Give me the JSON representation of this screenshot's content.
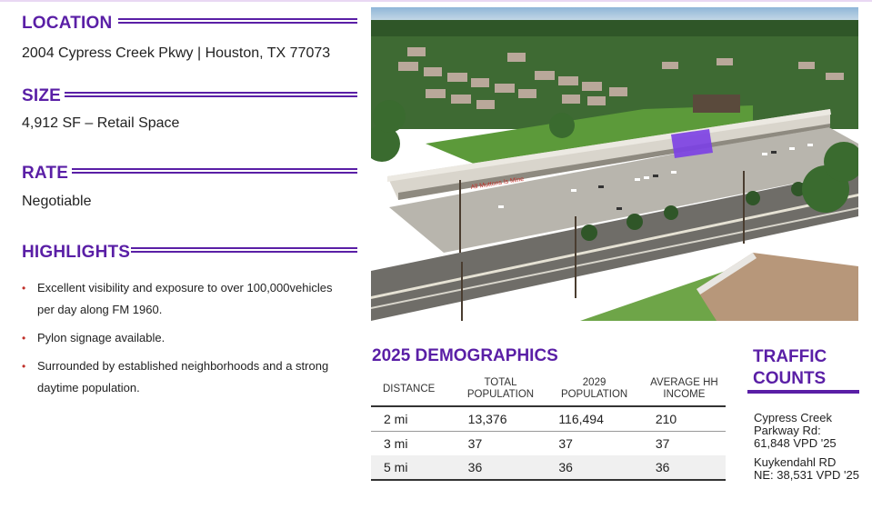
{
  "location": {
    "heading": "LOCATION",
    "address": "2004 Cypress Creek Pkwy  | Houston, TX 77073"
  },
  "size": {
    "heading": "SIZE",
    "value": "4,912 SF – Retail Space"
  },
  "rate": {
    "heading": "RATE",
    "value": "Negotiable"
  },
  "highlights": {
    "heading": "HIGHLIGHTS",
    "items": [
      "Excellent visibility and exposure to over 100,000vehicles  per day along FM 1960.",
      "Pylon signage available.",
      "Surrounded by established neighborhoods and a strong daytime population."
    ]
  },
  "photo": {
    "sign_text": "All Muttons Is Mine"
  },
  "demographics": {
    "title": "2025 DEMOGRAPHICS",
    "columns": [
      "DISTANCE",
      "TOTAL POPULATION",
      "2029 POPULATION",
      "AVERAGE HH INCOME"
    ],
    "rows": [
      [
        "2 mi",
        "13,376",
        "116,494",
        "210"
      ],
      [
        "3 mi",
        "37",
        "37",
        "37"
      ],
      [
        "5 mi",
        "36",
        "36",
        "36"
      ]
    ]
  },
  "traffic": {
    "title_line1": "TRAFFIC",
    "title_line2": "COUNTS",
    "entries": [
      {
        "line1": "Cypress Creek",
        "line2": "Parkway Rd:",
        "line3": "61,848 VPD '25"
      },
      {
        "line1": "Kuykendahl RD",
        "line2": "NE: 38,531 VPD '25"
      }
    ]
  },
  "colors": {
    "accent": "#5a1fa6",
    "bullet": "#c0302a",
    "highlight_unit": "#7b3fe4"
  }
}
